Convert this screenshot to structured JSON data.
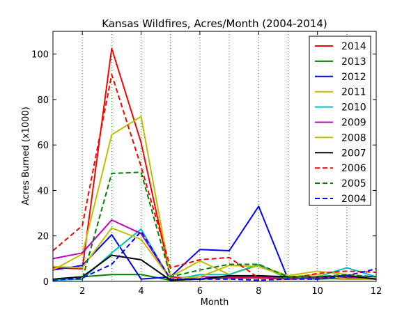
{
  "chart_data": {
    "type": "line",
    "title": "Kansas Wildfires, Acres/Month (2004-2014)",
    "xlabel": "Month",
    "ylabel": "Acres Burned (x1000)",
    "xlim": [
      1,
      12
    ],
    "ylim": [
      0,
      110
    ],
    "xticks": [
      2,
      4,
      6,
      8,
      10,
      12
    ],
    "yticks": [
      0,
      20,
      40,
      60,
      80,
      100
    ],
    "vertical_grid": "dotted green at each month",
    "legend_position": "top-right",
    "x": [
      1,
      2,
      3,
      4,
      5,
      6,
      7,
      8,
      9,
      10,
      11,
      12
    ],
    "series": [
      {
        "name": "2014",
        "color": "#ff0000",
        "dash": "solid",
        "values": [
          6,
          5.5,
          102.5,
          61,
          2,
          1,
          1.5,
          1.5,
          1,
          1.5,
          1,
          1
        ]
      },
      {
        "name": "2013",
        "color": "#008000",
        "dash": "solid",
        "values": [
          1,
          2,
          3,
          3,
          0.5,
          1,
          2,
          2,
          1.5,
          1,
          1.5,
          1
        ]
      },
      {
        "name": "2012",
        "color": "#0000ff",
        "dash": "solid",
        "values": [
          5,
          7,
          20.5,
          1,
          2,
          14,
          13.5,
          33,
          1,
          1.5,
          2.5,
          2
        ]
      },
      {
        "name": "2011",
        "color": "#bfbf00",
        "dash": "solid",
        "values": [
          5,
          12,
          64.5,
          72.5,
          2,
          9,
          3,
          7,
          2.5,
          4.5,
          3,
          1
        ]
      },
      {
        "name": "2010",
        "color": "#00bfbf",
        "dash": "solid",
        "values": [
          0.5,
          1,
          12.5,
          23,
          0.5,
          3,
          3,
          7.5,
          1,
          2,
          6,
          2
        ]
      },
      {
        "name": "2009",
        "color": "#bf00bf",
        "dash": "solid",
        "values": [
          10,
          12.5,
          27,
          21,
          1,
          2,
          2,
          2,
          1,
          1.5,
          2,
          1
        ]
      },
      {
        "name": "2008",
        "color": "#bfbf00",
        "dash": "solid",
        "values": [
          6.5,
          6,
          23.5,
          18.5,
          1,
          2,
          7,
          6.5,
          2,
          3,
          1,
          1
        ]
      },
      {
        "name": "2007",
        "color": "#000000",
        "dash": "solid",
        "values": [
          1,
          2,
          11.5,
          9.5,
          0.5,
          1,
          2.5,
          2.5,
          2,
          2,
          2.5,
          1
        ]
      },
      {
        "name": "2006",
        "color": "#ff0000",
        "dash": "dashed",
        "values": [
          13.5,
          24.5,
          91,
          50.5,
          6,
          9.5,
          10.5,
          1.5,
          1,
          3.5,
          4.5,
          4
        ]
      },
      {
        "name": "2005",
        "color": "#008000",
        "dash": "dashed",
        "values": [
          1,
          1,
          47.5,
          48,
          2,
          5,
          7.5,
          7.5,
          2,
          2,
          3,
          2
        ]
      },
      {
        "name": "2004",
        "color": "#0000ff",
        "dash": "dashed",
        "values": [
          0.5,
          1.5,
          7.5,
          22,
          1,
          1,
          1,
          0.5,
          1,
          1,
          2.5,
          5.5
        ]
      }
    ]
  }
}
